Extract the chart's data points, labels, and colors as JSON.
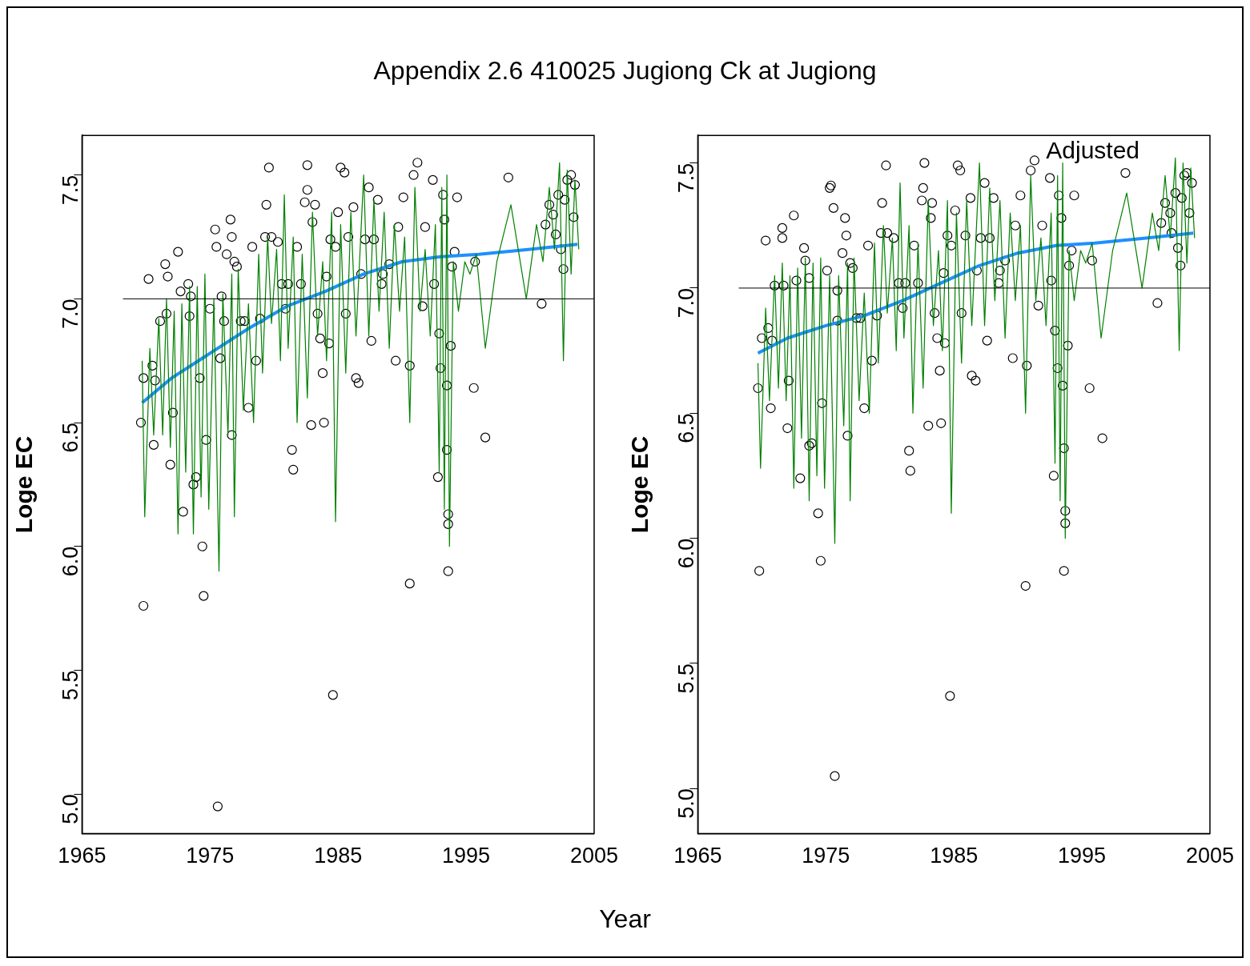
{
  "chart_data": [
    {
      "type": "scatter",
      "title": "Appendix 2.6 410025 Jugiong Ck at Jugiong",
      "xlabel": "Year",
      "ylabel": "Loge EC",
      "xlim": [
        1965,
        2005
      ],
      "xticks": [
        1965,
        1975,
        1985,
        1995,
        2005
      ],
      "ylim": [
        4.84,
        7.66
      ],
      "yticks": [
        {
          "value": 5,
          "label": "5.0"
        },
        {
          "value": 5.5,
          "label": "5.5"
        },
        {
          "value": 6,
          "label": "6.0"
        },
        {
          "value": 6.5,
          "label": "6.5"
        },
        {
          "value": 7,
          "label": "7.0"
        },
        {
          "value": 7.5,
          "label": "7.5"
        }
      ],
      "grid": false,
      "legend": false,
      "ref_lines": [
        {
          "axis": "y",
          "value": 7.0,
          "color": "#000000"
        }
      ],
      "series": [
        {
          "marker": "circle",
          "color": "#000000",
          "x": [
            1969.6,
            1969.8,
            1969.8,
            1970.2,
            1970.5,
            1970.6,
            1970.7,
            1971.1,
            1971.5,
            1971.6,
            1971.7,
            1971.9,
            1972.1,
            1972.5,
            1972.7,
            1972.9,
            1973.3,
            1973.4,
            1973.5,
            1973.7,
            1973.9,
            1974.2,
            1974.4,
            1974.5,
            1974.7,
            1975.0,
            1975.4,
            1975.5,
            1975.6,
            1975.8,
            1975.9,
            1976.1,
            1976.3,
            1976.6,
            1976.7,
            1976.7,
            1976.9,
            1977.1,
            1977.4,
            1977.7,
            1978.0,
            1978.3,
            1978.6,
            1978.9,
            1979.3,
            1979.4,
            1979.6,
            1979.8,
            1980.3,
            1980.6,
            1980.9,
            1981.1,
            1981.4,
            1981.5,
            1981.8,
            1982.1,
            1982.4,
            1982.6,
            1982.6,
            1982.9,
            1983.0,
            1983.2,
            1983.4,
            1983.6,
            1983.8,
            1983.9,
            1984.1,
            1984.3,
            1984.4,
            1984.6,
            1984.8,
            1985.0,
            1985.2,
            1985.5,
            1985.6,
            1985.8,
            1986.2,
            1986.4,
            1986.6,
            1986.8,
            1987.1,
            1987.4,
            1987.6,
            1987.8,
            1988.1,
            1988.4,
            1988.5,
            1989.0,
            1989.5,
            1989.7,
            1990.1,
            1990.6,
            1990.6,
            1990.9,
            1991.2,
            1991.6,
            1991.8,
            1992.4,
            1992.5,
            1992.8,
            1992.9,
            1993.0,
            1993.2,
            1993.3,
            1993.5,
            1993.5,
            1993.6,
            1993.6,
            1993.6,
            1993.8,
            1993.9,
            1994.1,
            1994.3,
            1995.6,
            1995.7,
            1996.5,
            1998.3,
            2000.9,
            2001.2,
            2001.5,
            2001.8,
            2002.0,
            2002.2,
            2002.4,
            2002.6,
            2002.7,
            2002.9,
            2003.2,
            2003.4,
            2003.5
          ],
          "values": [
            6.5,
            5.76,
            6.68,
            7.08,
            6.73,
            6.41,
            6.67,
            6.91,
            7.14,
            6.94,
            7.09,
            6.33,
            6.54,
            7.19,
            7.03,
            6.14,
            7.06,
            6.93,
            7.01,
            6.25,
            6.28,
            6.68,
            6.0,
            5.8,
            6.43,
            6.96,
            7.28,
            7.21,
            4.95,
            6.76,
            7.01,
            6.91,
            7.18,
            7.32,
            7.25,
            6.45,
            7.15,
            7.13,
            6.91,
            6.91,
            6.56,
            7.21,
            6.75,
            6.92,
            7.25,
            7.38,
            7.53,
            7.25,
            7.23,
            7.06,
            6.96,
            7.06,
            6.39,
            6.31,
            7.21,
            7.06,
            7.39,
            7.44,
            7.54,
            6.49,
            7.31,
            7.38,
            6.94,
            6.84,
            6.7,
            6.5,
            7.09,
            6.82,
            7.24,
            5.4,
            7.21,
            7.35,
            7.53,
            7.51,
            6.94,
            7.25,
            7.37,
            6.68,
            6.66,
            7.1,
            7.24,
            7.45,
            6.83,
            7.24,
            7.4,
            7.06,
            7.1,
            7.14,
            6.75,
            7.29,
            7.41,
            5.85,
            6.73,
            7.5,
            7.55,
            6.97,
            7.29,
            7.48,
            7.06,
            6.28,
            6.86,
            6.72,
            7.42,
            7.32,
            6.65,
            6.39,
            5.9,
            6.13,
            6.09,
            6.81,
            7.13,
            7.19,
            7.41,
            6.64,
            7.15,
            6.44,
            7.49,
            6.98,
            7.3,
            7.38,
            7.34,
            7.26,
            7.42,
            7.2,
            7.12,
            7.4,
            7.48,
            7.5,
            7.33,
            7.46
          ]
        },
        {
          "type": "line",
          "color": "#008000",
          "x": [
            1969.7,
            1969.9,
            1970.3,
            1970.6,
            1971.0,
            1971.3,
            1971.6,
            1971.9,
            1972.2,
            1972.5,
            1972.8,
            1973.1,
            1973.4,
            1973.7,
            1974.0,
            1974.3,
            1974.6,
            1974.9,
            1975.3,
            1975.7,
            1976.0,
            1976.4,
            1976.7,
            1976.9,
            1977.2,
            1977.6,
            1978.0,
            1978.4,
            1978.8,
            1979.1,
            1979.5,
            1979.8,
            1980.2,
            1980.5,
            1980.8,
            1981.1,
            1981.5,
            1981.8,
            1982.2,
            1982.6,
            1983.0,
            1983.4,
            1983.8,
            1984.1,
            1984.5,
            1984.8,
            1985.2,
            1985.6,
            1986.0,
            1986.4,
            1987.0,
            1987.4,
            1987.8,
            1988.2,
            1988.6,
            1989.0,
            1989.4,
            1989.8,
            1990.2,
            1990.6,
            1991.0,
            1991.4,
            1991.8,
            1992.2,
            1992.6,
            1992.9,
            1993.1,
            1993.3,
            1993.5,
            1993.7,
            1994.0,
            1994.4,
            1994.9,
            1995.3,
            1995.8,
            1996.5,
            1997.4,
            1998.5,
            1999.7,
            2000.5,
            2001.0,
            2001.5,
            2001.9,
            2002.3,
            2002.6,
            2002.9,
            2003.2,
            2003.5,
            2003.8
          ],
          "values": [
            6.75,
            6.12,
            6.8,
            6.45,
            6.92,
            6.45,
            7.0,
            6.4,
            6.95,
            6.05,
            6.98,
            6.3,
            7.05,
            6.05,
            7.05,
            6.2,
            7.1,
            6.15,
            7.0,
            5.9,
            7.02,
            6.45,
            7.1,
            6.12,
            7.12,
            6.55,
            6.98,
            6.5,
            7.18,
            6.7,
            7.25,
            6.9,
            7.2,
            6.75,
            7.42,
            6.8,
            7.25,
            6.5,
            7.18,
            6.6,
            7.35,
            6.85,
            7.15,
            6.75,
            7.35,
            6.1,
            7.3,
            6.7,
            7.35,
            6.85,
            7.5,
            6.85,
            7.4,
            6.95,
            7.35,
            6.8,
            7.3,
            6.95,
            7.25,
            6.5,
            7.45,
            6.95,
            7.2,
            6.85,
            7.3,
            6.3,
            7.45,
            6.15,
            7.5,
            6.0,
            7.15,
            6.95,
            7.15,
            7.1,
            7.18,
            6.8,
            7.15,
            7.38,
            7.0,
            7.3,
            7.15,
            7.45,
            7.2,
            7.55,
            6.75,
            7.52,
            7.1,
            7.48,
            7.2
          ]
        },
        {
          "type": "line",
          "color": "#1e90ff",
          "x": [
            1969.7,
            1972,
            1975,
            1978,
            1981,
            1984,
            1987,
            1990,
            1993,
            1996,
            2000,
            2003.7
          ],
          "values": [
            6.58,
            6.68,
            6.78,
            6.88,
            6.97,
            7.03,
            7.1,
            7.15,
            7.17,
            7.18,
            7.2,
            7.22
          ]
        }
      ]
    },
    {
      "type": "scatter",
      "ylabel": "Loge EC",
      "xlim": [
        1965,
        2005
      ],
      "xticks": [
        1965,
        1975,
        1985,
        1995,
        2005
      ],
      "ylim": [
        4.82,
        7.61
      ],
      "yticks": [
        {
          "value": 5,
          "label": "5.0"
        },
        {
          "value": 5.5,
          "label": "5.5"
        },
        {
          "value": 6,
          "label": "6.0"
        },
        {
          "value": 6.5,
          "label": "6.5"
        },
        {
          "value": 7,
          "label": "7.0"
        },
        {
          "value": 7.5,
          "label": "7.5"
        }
      ],
      "grid": false,
      "legend": false,
      "annotations": [
        "Adjusted"
      ],
      "ref_lines": [
        {
          "axis": "y",
          "value": 7.0,
          "color": "#000000"
        }
      ],
      "series": [
        {
          "marker": "circle",
          "color": "#000000",
          "x": [
            1969.7,
            1969.8,
            1970.0,
            1970.3,
            1970.5,
            1970.7,
            1970.8,
            1971.0,
            1971.6,
            1971.6,
            1971.7,
            1972.0,
            1972.1,
            1972.5,
            1972.7,
            1973.0,
            1973.3,
            1973.4,
            1973.7,
            1973.7,
            1973.9,
            1974.4,
            1974.6,
            1974.7,
            1975.1,
            1975.3,
            1975.4,
            1975.6,
            1975.7,
            1975.9,
            1975.9,
            1976.3,
            1976.5,
            1976.6,
            1976.7,
            1976.9,
            1977.1,
            1977.4,
            1977.7,
            1978.0,
            1978.3,
            1978.6,
            1979.0,
            1979.3,
            1979.4,
            1979.7,
            1979.8,
            1980.3,
            1980.7,
            1981.0,
            1981.2,
            1981.5,
            1981.6,
            1981.9,
            1982.2,
            1982.5,
            1982.6,
            1982.7,
            1983.0,
            1983.2,
            1983.3,
            1983.5,
            1983.7,
            1983.9,
            1984.0,
            1984.2,
            1984.3,
            1984.5,
            1984.7,
            1984.8,
            1985.1,
            1985.3,
            1985.5,
            1985.6,
            1985.9,
            1986.3,
            1986.4,
            1986.7,
            1986.8,
            1987.1,
            1987.4,
            1987.6,
            1987.8,
            1988.1,
            1988.5,
            1988.6,
            1989.0,
            1989.6,
            1989.8,
            1990.2,
            1990.6,
            1990.7,
            1991.0,
            1991.3,
            1991.6,
            1991.9,
            1992.5,
            1992.6,
            1992.8,
            1992.9,
            1993.1,
            1993.2,
            1993.4,
            1993.5,
            1993.6,
            1993.6,
            1993.7,
            1993.7,
            1993.9,
            1994.0,
            1994.2,
            1994.4,
            1995.6,
            1995.8,
            1996.6,
            1998.4,
            2000.9,
            2001.2,
            2001.5,
            2001.9,
            2002.0,
            2002.3,
            2002.5,
            2002.7,
            2002.8,
            2003.0,
            2003.2,
            2003.4,
            2003.6
          ],
          "values": [
            6.6,
            5.87,
            6.8,
            7.19,
            6.84,
            6.52,
            6.79,
            7.01,
            7.24,
            7.2,
            7.01,
            6.44,
            6.63,
            7.29,
            7.03,
            6.24,
            7.16,
            7.11,
            7.04,
            6.37,
            6.38,
            6.1,
            5.91,
            6.54,
            7.07,
            7.4,
            7.41,
            7.32,
            5.05,
            6.87,
            6.99,
            7.14,
            7.28,
            7.21,
            6.41,
            7.1,
            7.08,
            6.88,
            6.88,
            6.52,
            7.17,
            6.71,
            6.89,
            7.22,
            7.34,
            7.49,
            7.22,
            7.2,
            7.02,
            6.92,
            7.02,
            6.35,
            6.27,
            7.17,
            7.02,
            7.35,
            7.4,
            7.5,
            6.45,
            7.28,
            7.34,
            6.9,
            6.8,
            6.67,
            6.46,
            7.06,
            6.78,
            7.21,
            5.37,
            7.17,
            7.31,
            7.49,
            7.47,
            6.9,
            7.21,
            7.36,
            6.65,
            6.63,
            7.07,
            7.2,
            7.42,
            6.79,
            7.2,
            7.36,
            7.02,
            7.07,
            7.11,
            6.72,
            7.25,
            7.37,
            5.81,
            6.69,
            7.47,
            7.51,
            6.93,
            7.25,
            7.44,
            7.03,
            6.25,
            6.83,
            6.68,
            7.37,
            7.28,
            6.61,
            6.36,
            5.87,
            6.11,
            6.06,
            6.77,
            7.09,
            7.15,
            7.37,
            6.6,
            7.11,
            6.4,
            7.46,
            6.94,
            7.26,
            7.34,
            7.3,
            7.22,
            7.38,
            7.16,
            7.09,
            7.36,
            7.45,
            7.46,
            7.3,
            7.42
          ]
        },
        {
          "type": "line",
          "color": "#008000",
          "x": [
            1969.7,
            1969.9,
            1970.3,
            1970.6,
            1971.0,
            1971.3,
            1971.6,
            1971.9,
            1972.2,
            1972.5,
            1972.8,
            1973.1,
            1973.4,
            1973.7,
            1974.0,
            1974.3,
            1974.6,
            1974.9,
            1975.3,
            1975.7,
            1976.0,
            1976.4,
            1976.7,
            1976.9,
            1977.2,
            1977.6,
            1978.0,
            1978.4,
            1978.8,
            1979.1,
            1979.5,
            1979.8,
            1980.2,
            1980.5,
            1980.8,
            1981.1,
            1981.5,
            1981.8,
            1982.2,
            1982.6,
            1983.0,
            1983.4,
            1983.8,
            1984.1,
            1984.5,
            1984.8,
            1985.2,
            1985.6,
            1986.0,
            1986.4,
            1987.0,
            1987.4,
            1987.8,
            1988.2,
            1988.6,
            1989.0,
            1989.4,
            1989.8,
            1990.2,
            1990.6,
            1991.0,
            1991.4,
            1991.8,
            1992.2,
            1992.6,
            1992.9,
            1993.1,
            1993.3,
            1993.5,
            1993.7,
            1994.0,
            1994.4,
            1994.9,
            1995.3,
            1995.8,
            1996.5,
            1997.4,
            1998.5,
            1999.7,
            2000.5,
            2001.0,
            2001.5,
            2001.9,
            2002.3,
            2002.6,
            2002.9,
            2003.2,
            2003.5,
            2003.8
          ],
          "values": [
            6.7,
            6.28,
            6.92,
            6.55,
            7.05,
            6.6,
            7.1,
            6.55,
            7.05,
            6.2,
            7.08,
            6.4,
            7.12,
            6.15,
            7.1,
            6.25,
            7.12,
            6.2,
            7.05,
            5.98,
            7.05,
            6.45,
            7.1,
            6.15,
            7.12,
            6.55,
            6.98,
            6.5,
            7.18,
            6.7,
            7.25,
            6.9,
            7.2,
            6.75,
            7.42,
            6.8,
            7.25,
            6.5,
            7.18,
            6.6,
            7.35,
            6.85,
            7.15,
            6.75,
            7.35,
            6.1,
            7.3,
            6.7,
            7.35,
            6.85,
            7.5,
            6.85,
            7.4,
            6.95,
            7.35,
            6.8,
            7.3,
            6.95,
            7.25,
            6.5,
            7.45,
            6.95,
            7.2,
            6.85,
            7.3,
            6.3,
            7.45,
            6.15,
            7.5,
            6.0,
            7.15,
            6.95,
            7.15,
            7.1,
            7.18,
            6.8,
            7.15,
            7.38,
            7.0,
            7.3,
            7.15,
            7.45,
            7.2,
            7.52,
            6.75,
            7.5,
            7.1,
            7.48,
            7.2
          ]
        },
        {
          "type": "line",
          "color": "#1e90ff",
          "x": [
            1969.7,
            1972,
            1975,
            1978,
            1981,
            1984,
            1987,
            1990,
            1993,
            1996,
            2000,
            2003.7
          ],
          "values": [
            6.74,
            6.8,
            6.85,
            6.89,
            6.95,
            7.02,
            7.09,
            7.14,
            7.17,
            7.18,
            7.2,
            7.22
          ]
        }
      ]
    }
  ]
}
